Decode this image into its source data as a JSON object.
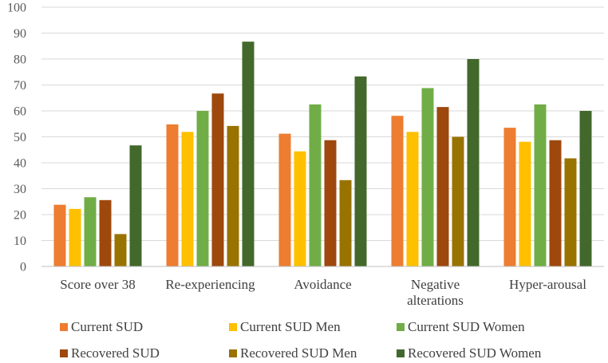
{
  "chart_data": {
    "type": "bar",
    "title": "",
    "xlabel": "",
    "ylabel": "",
    "ylim": [
      0,
      100
    ],
    "yticks": [
      0,
      10,
      20,
      30,
      40,
      50,
      60,
      70,
      80,
      90,
      100
    ],
    "categories": [
      [
        "Score over 38"
      ],
      [
        "Re-experiencing"
      ],
      [
        "Avoidance"
      ],
      [
        "Negative",
        "alterations"
      ],
      [
        "Hyper-arousal"
      ]
    ],
    "series": [
      {
        "name": "Current SUD",
        "color": "#ED7D31",
        "values": [
          23.8,
          54.8,
          51.2,
          58.1,
          53.5
        ]
      },
      {
        "name": "Current SUD Men",
        "color": "#FFC000",
        "values": [
          22.2,
          51.9,
          44.4,
          51.9,
          48.1
        ]
      },
      {
        "name": "Current SUD Women",
        "color": "#70AD47",
        "values": [
          26.7,
          60.0,
          62.5,
          68.8,
          62.5
        ]
      },
      {
        "name": "Recovered SUD",
        "color": "#9E480E",
        "values": [
          25.6,
          66.7,
          48.7,
          61.5,
          48.7
        ]
      },
      {
        "name": "Recovered SUD Men",
        "color": "#997300",
        "values": [
          12.5,
          54.2,
          33.3,
          50.0,
          41.7
        ]
      },
      {
        "name": "Recovered SUD Women",
        "color": "#43682B",
        "values": [
          46.7,
          86.7,
          73.3,
          80.0,
          60.0
        ]
      }
    ],
    "legend_position": "bottom",
    "grid": true
  }
}
